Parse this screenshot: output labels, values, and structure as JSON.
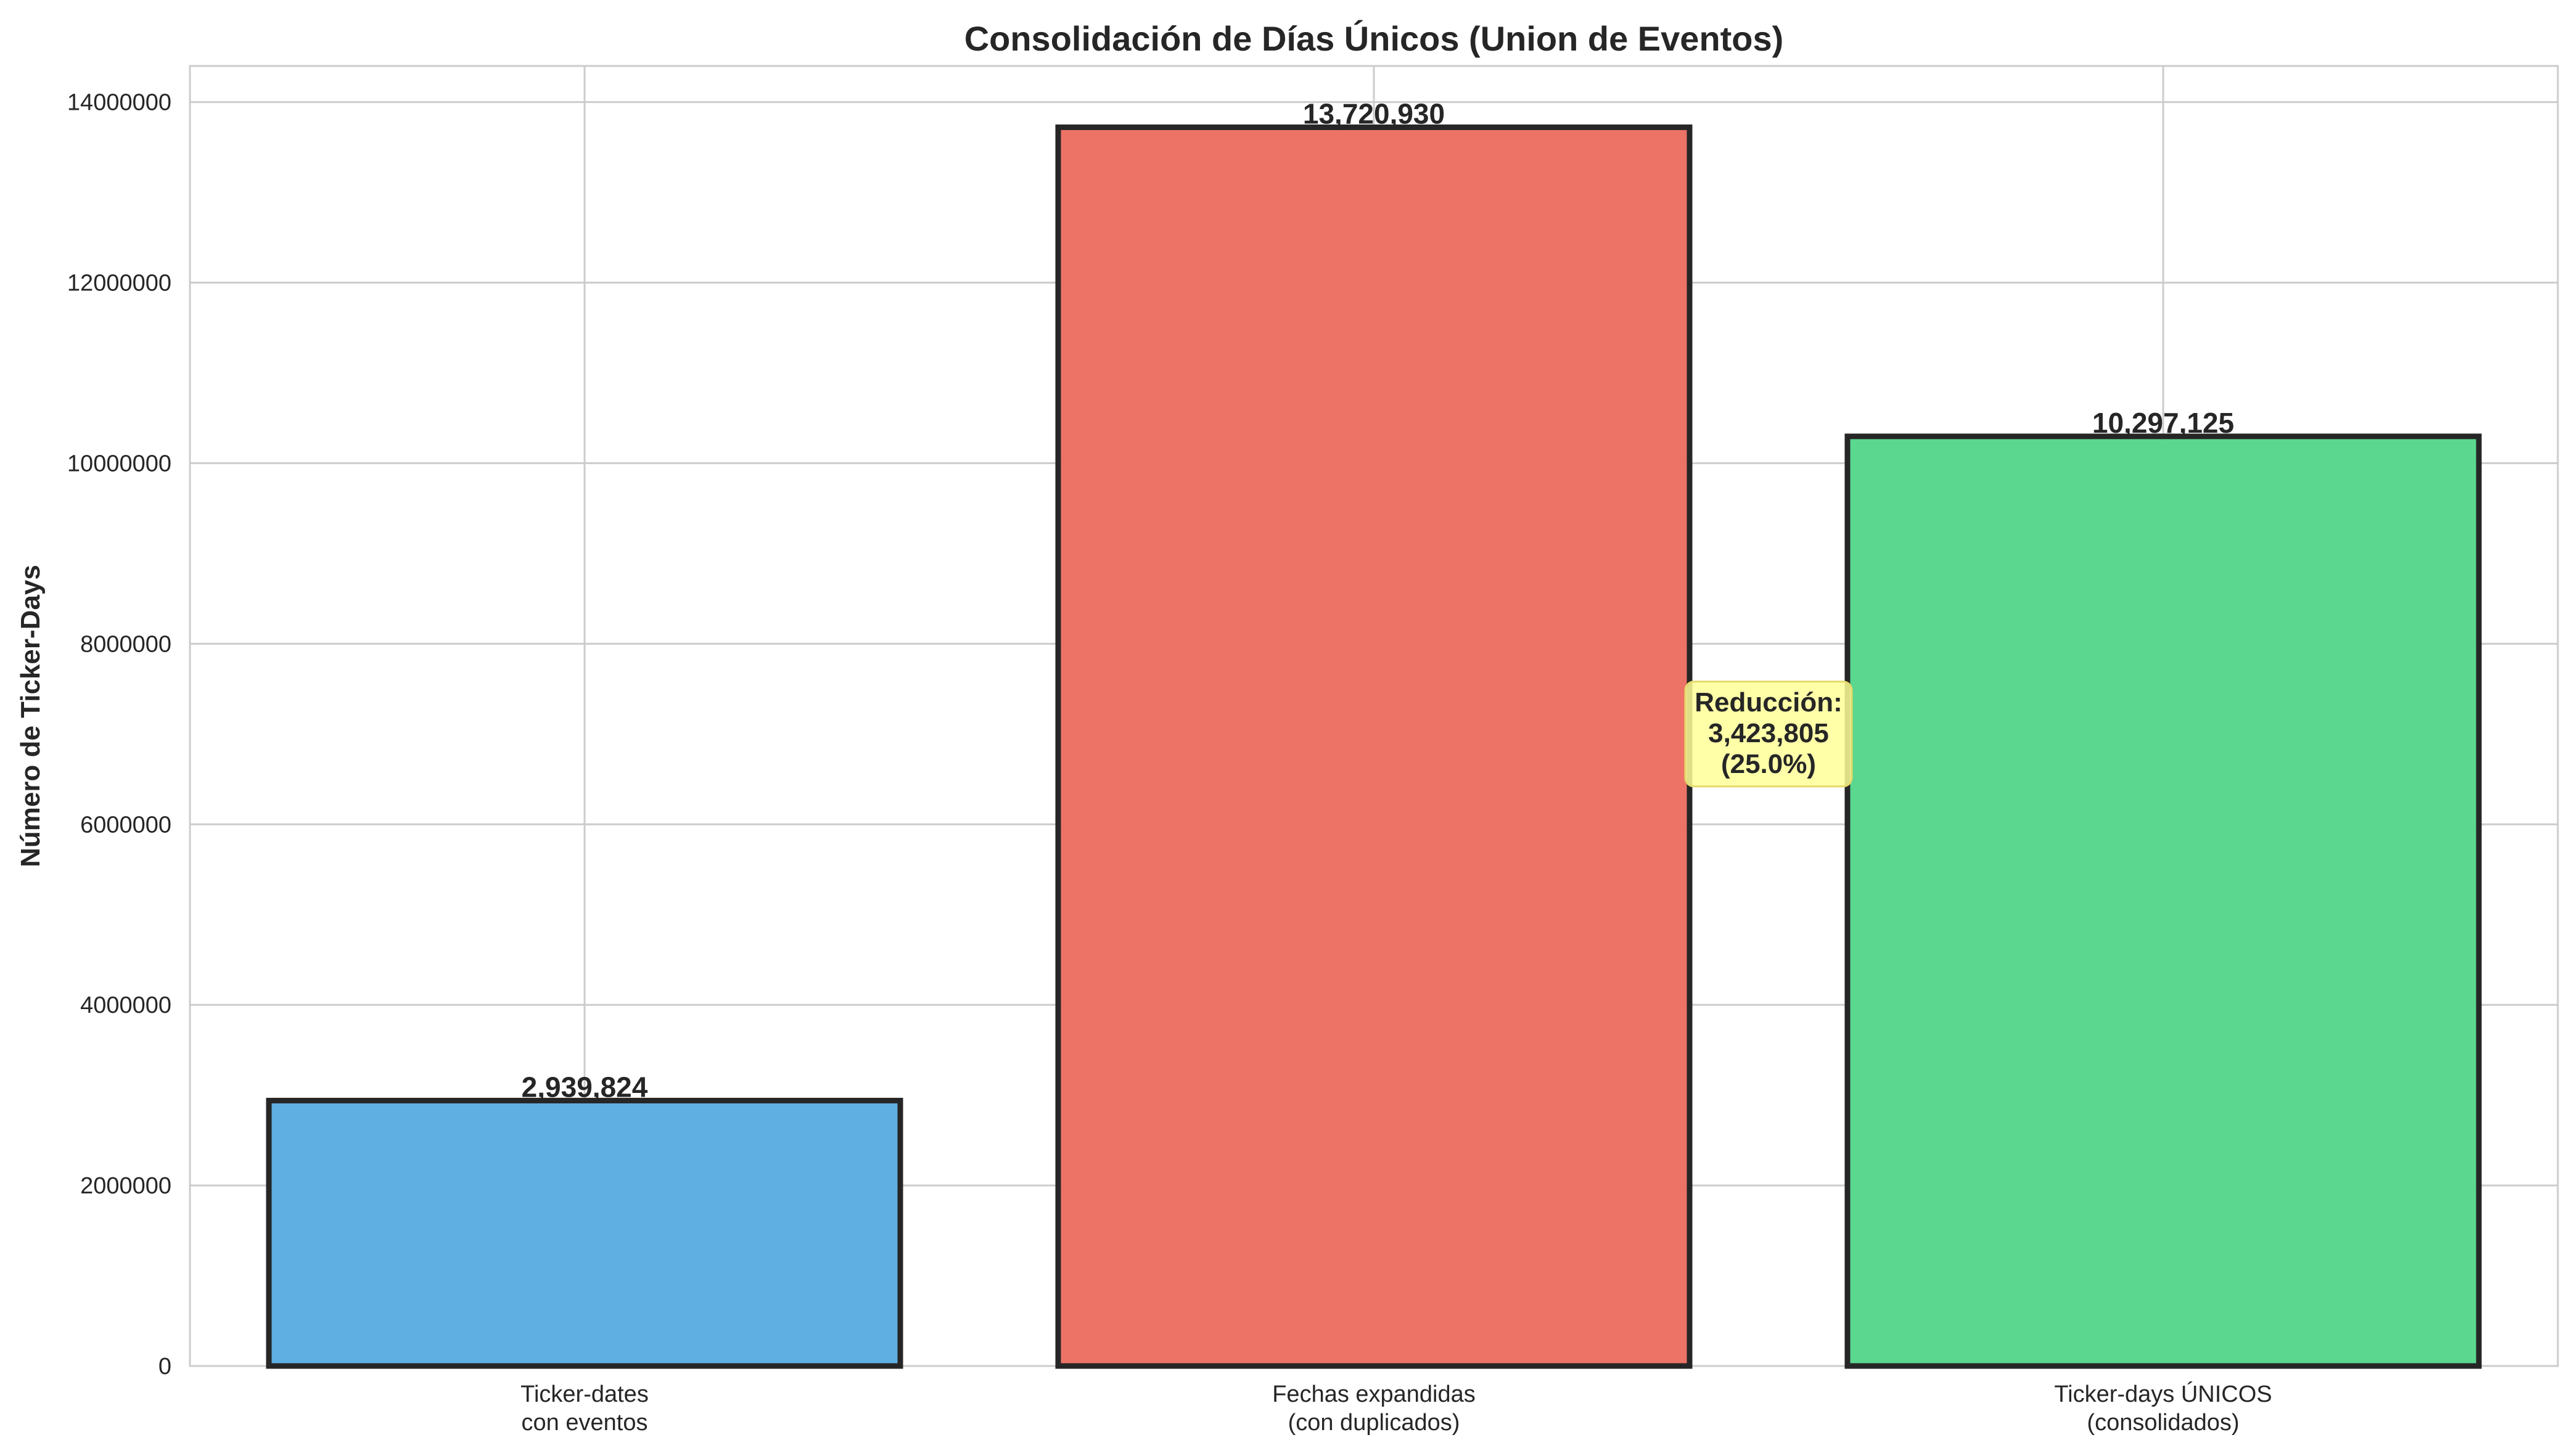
{
  "chart_data": {
    "type": "bar",
    "title": "Consolidación de Días Únicos (Union de Eventos)",
    "xlabel": "",
    "ylabel": "Número de Ticker-Days",
    "ylim": [
      0,
      14400000
    ],
    "yticks": [
      0,
      2000000,
      4000000,
      6000000,
      8000000,
      10000000,
      12000000,
      14000000
    ],
    "ytick_labels": [
      "0",
      "2000000",
      "4000000",
      "6000000",
      "8000000",
      "10000000",
      "12000000",
      "14000000"
    ],
    "categories": [
      [
        "Ticker-dates",
        "con eventos"
      ],
      [
        "Fechas expandidas",
        "(con duplicados)"
      ],
      [
        "Ticker-days ÚNICOS",
        "(consolidados)"
      ]
    ],
    "values": [
      2939824,
      13720930,
      10297125
    ],
    "value_labels": [
      "2,939,824",
      "13,720,930",
      "10,297,125"
    ],
    "colors": [
      "#5DADE2",
      "#EC7063",
      "#58D68D"
    ],
    "edge_color": "#262626",
    "grid": true,
    "annotation": {
      "lines": [
        "Reducción:",
        "3,423,805",
        "(25.0%)"
      ],
      "y_value": 7000000,
      "background": "#FFFF99"
    }
  }
}
